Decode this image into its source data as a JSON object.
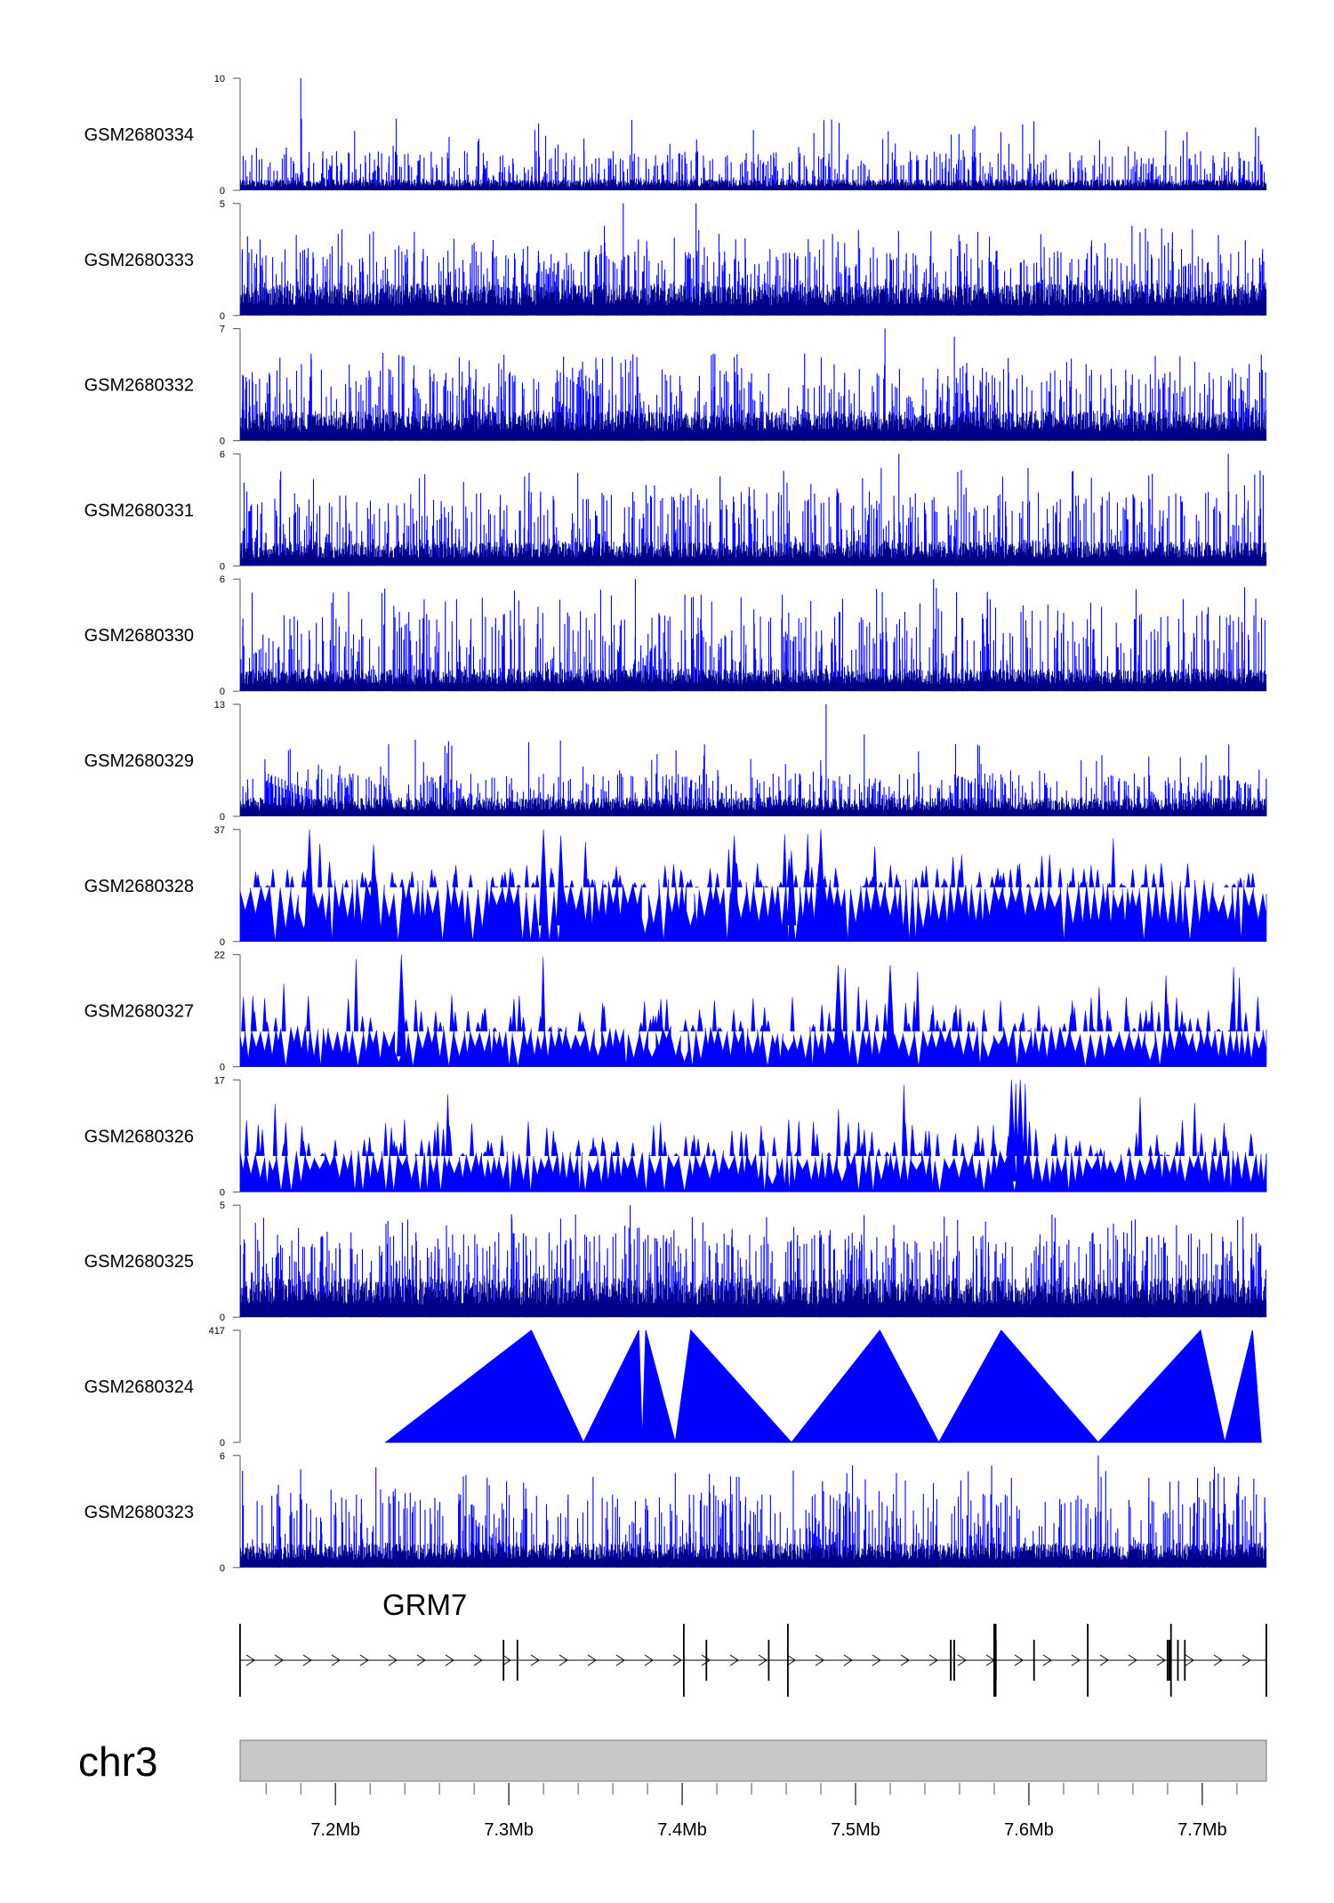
{
  "chart_data": {
    "type": "area",
    "title": "",
    "x_units": "Mb",
    "xlim": [
      7.145,
      7.737
    ],
    "colors": {
      "signal": "#0000ff",
      "signal_dark": "#000088",
      "ideogram": "#c8c8c8",
      "gene": "#000000"
    },
    "tracks": [
      {
        "name": "GSM2680334",
        "ylim_label": "10",
        "zero_label": "0",
        "ymax": 10,
        "style": "noise",
        "base": 0.9,
        "spike": 3.5,
        "rare": 6.5,
        "seed": 334,
        "peaks": [
          [
            7.18,
            10
          ]
        ]
      },
      {
        "name": "GSM2680333",
        "ylim_label": "5",
        "zero_label": "0",
        "ymax": 5,
        "style": "noise",
        "base": 1.3,
        "spike": 3.0,
        "rare": 4.0,
        "seed": 333,
        "peaks": [
          [
            7.366,
            5
          ],
          [
            7.408,
            5
          ]
        ]
      },
      {
        "name": "GSM2680332",
        "ylim_label": "7",
        "zero_label": "0",
        "ymax": 7,
        "style": "noise",
        "base": 1.7,
        "spike": 4.5,
        "rare": 5.5,
        "seed": 332,
        "peaks": [
          [
            7.517,
            7
          ],
          [
            7.557,
            6.5
          ]
        ]
      },
      {
        "name": "GSM2680331",
        "ylim_label": "6",
        "zero_label": "0",
        "ymax": 6,
        "style": "noise",
        "base": 1.2,
        "spike": 4.0,
        "rare": 5.3,
        "seed": 331,
        "peaks": [
          [
            7.525,
            6
          ],
          [
            7.715,
            6
          ]
        ]
      },
      {
        "name": "GSM2680330",
        "ylim_label": "6",
        "zero_label": "0",
        "ymax": 6,
        "style": "noise",
        "base": 1.1,
        "spike": 4.3,
        "rare": 5.6,
        "seed": 330,
        "peaks": [
          [
            7.373,
            6
          ],
          [
            7.545,
            6
          ]
        ]
      },
      {
        "name": "GSM2680329",
        "ylim_label": "13",
        "zero_label": "0",
        "ymax": 13,
        "style": "noise",
        "base": 2.0,
        "spike": 5.0,
        "rare": 9.0,
        "seed": 329,
        "peaks": [
          [
            7.483,
            13
          ],
          [
            7.505,
            9.5
          ]
        ]
      },
      {
        "name": "GSM2680328",
        "ylim_label": "37",
        "zero_label": "0",
        "ymax": 37,
        "style": "spiky",
        "base": 18,
        "spike": 26,
        "rare": 37,
        "seed": 328,
        "peaks": [
          [
            7.185,
            37
          ],
          [
            7.222,
            32
          ],
          [
            7.32,
            37
          ],
          [
            7.33,
            35
          ],
          [
            7.43,
            35
          ],
          [
            7.463,
            30
          ],
          [
            7.48,
            37
          ]
        ]
      },
      {
        "name": "GSM2680327",
        "ylim_label": "22",
        "zero_label": "0",
        "ymax": 22,
        "style": "spiky",
        "base": 7,
        "spike": 14,
        "rare": 22,
        "seed": 327,
        "peaks": [
          [
            7.238,
            22
          ],
          [
            7.49,
            20
          ],
          [
            7.52,
            20
          ]
        ]
      },
      {
        "name": "GSM2680326",
        "ylim_label": "17",
        "zero_label": "0",
        "ymax": 17,
        "style": "spiky",
        "base": 5.5,
        "spike": 11,
        "rare": 17,
        "seed": 326,
        "peaks": [
          [
            7.59,
            17
          ],
          [
            7.595,
            17
          ]
        ]
      },
      {
        "name": "GSM2680325",
        "ylim_label": "5",
        "zero_label": "0",
        "ymax": 5,
        "style": "noise",
        "base": 1.6,
        "spike": 3.8,
        "rare": 4.6,
        "seed": 325,
        "peaks": [
          [
            7.37,
            5
          ]
        ]
      },
      {
        "name": "GSM2680324",
        "ylim_label": "417",
        "zero_label": "0",
        "ymax": 417,
        "style": "triangles",
        "seed": 324,
        "points": [
          [
            7.229,
            0
          ],
          [
            7.313,
            417
          ],
          [
            7.343,
            0
          ],
          [
            7.375,
            417
          ],
          [
            7.377,
            0
          ],
          [
            7.379,
            417
          ],
          [
            7.396,
            0
          ],
          [
            7.405,
            417
          ],
          [
            7.463,
            0
          ],
          [
            7.514,
            417
          ],
          [
            7.548,
            0
          ],
          [
            7.584,
            417
          ],
          [
            7.64,
            0
          ],
          [
            7.699,
            417
          ],
          [
            7.713,
            0
          ],
          [
            7.729,
            417
          ],
          [
            7.734,
            0
          ]
        ]
      },
      {
        "name": "GSM2680323",
        "ylim_label": "6",
        "zero_label": "0",
        "ymax": 6,
        "style": "noise",
        "base": 1.2,
        "spike": 4.0,
        "rare": 5.5,
        "seed": 323,
        "peaks": [
          [
            7.64,
            6
          ]
        ]
      }
    ],
    "gene": {
      "name": "GRM7",
      "start": 7.145,
      "end": 7.737,
      "strand": "+",
      "exons": [
        7.145,
        7.297,
        7.305,
        7.401,
        7.414,
        7.45,
        7.461,
        7.555,
        7.557,
        7.58,
        7.581,
        7.603,
        7.634,
        7.68,
        7.681,
        7.682,
        7.686,
        7.69,
        7.737
      ]
    },
    "chromosome": {
      "name": "chr3",
      "ticks": [
        7.2,
        7.3,
        7.4,
        7.5,
        7.6,
        7.7
      ],
      "tick_labels": [
        "7.2Mb",
        "7.3Mb",
        "7.4Mb",
        "7.5Mb",
        "7.6Mb",
        "7.7Mb"
      ],
      "minor_step": 0.02
    }
  }
}
